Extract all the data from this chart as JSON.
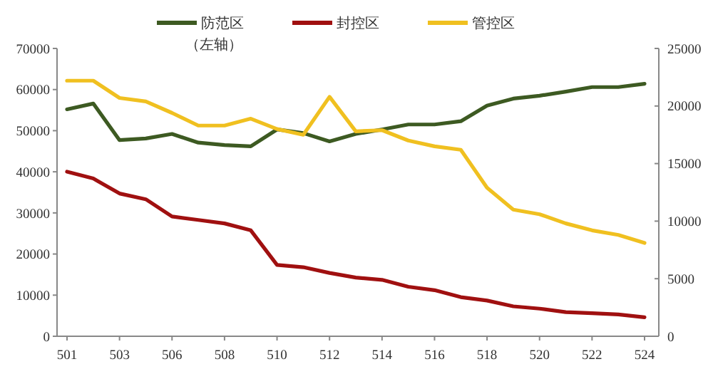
{
  "chart_data": {
    "type": "line",
    "categories": [
      "501",
      null,
      "503",
      null,
      "506",
      null,
      "508",
      null,
      "510",
      null,
      "512",
      null,
      "514",
      null,
      "516",
      null,
      "518",
      null,
      "520",
      null,
      "522",
      null,
      "524"
    ],
    "series": [
      {
        "name": "防范区",
        "color": "#3d5a22",
        "values": [
          55200,
          56600,
          47700,
          48100,
          49200,
          47100,
          46500,
          46200,
          50300,
          49400,
          47400,
          49200,
          50300,
          51500,
          51500,
          52300,
          56100,
          57800,
          58500,
          59500,
          60600,
          60600,
          61400
        ]
      },
      {
        "name": "封控区",
        "color": "#a01010",
        "axis": "y2",
        "values": [
          14300,
          13700,
          12400,
          11900,
          10400,
          10100,
          9800,
          9200,
          6200,
          6000,
          5500,
          5100,
          4900,
          4300,
          4000,
          3400,
          3100,
          2600,
          2400,
          2100,
          2000,
          1900,
          1650
        ]
      },
      {
        "name": "管控区",
        "color": "#f0c020",
        "axis": "y2",
        "values": [
          22200,
          22200,
          20700,
          20400,
          19400,
          18300,
          18300,
          18900,
          18000,
          17500,
          20800,
          17800,
          17900,
          17000,
          16500,
          16200,
          12900,
          11000,
          10600,
          9800,
          9200,
          8800,
          8100
        ]
      }
    ],
    "ylim": [
      0,
      70000
    ],
    "yticks": [
      0,
      10000,
      20000,
      30000,
      40000,
      50000,
      60000,
      70000
    ],
    "y2lim": [
      0,
      25000
    ],
    "y2ticks": [
      0,
      5000,
      10000,
      15000,
      20000,
      25000
    ],
    "annotations": [
      "（左轴）"
    ],
    "legend": "top",
    "grid": false,
    "marker": "none",
    "line_style": "solid"
  }
}
